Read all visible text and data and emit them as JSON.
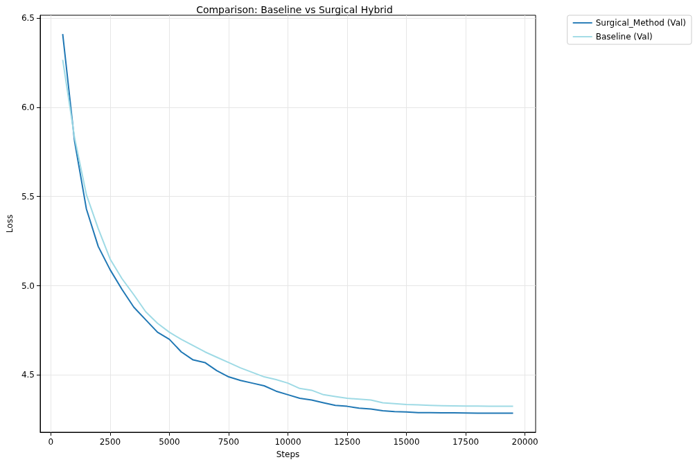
{
  "chart_data": {
    "type": "line",
    "title": "Comparison: Baseline vs Surgical Hybrid",
    "xlabel": "Steps",
    "ylabel": "Loss",
    "x": [
      500,
      1000,
      1500,
      2000,
      2500,
      3000,
      3500,
      4000,
      4500,
      5000,
      5500,
      6000,
      6500,
      7000,
      7500,
      8000,
      8500,
      9000,
      9500,
      10000,
      10500,
      11000,
      11500,
      12000,
      12500,
      13000,
      13500,
      14000,
      14500,
      15000,
      15500,
      16000,
      16500,
      17000,
      17500,
      18000,
      18500,
      19000,
      19500
    ],
    "series": [
      {
        "name": "Surgical_Method (Val)",
        "color": "#1f77b4",
        "values": [
          6.41,
          5.81,
          5.43,
          5.22,
          5.09,
          4.98,
          4.88,
          4.81,
          4.74,
          4.7,
          4.63,
          4.585,
          4.57,
          4.525,
          4.49,
          4.47,
          4.455,
          4.44,
          4.41,
          4.39,
          4.37,
          4.36,
          4.345,
          4.33,
          4.325,
          4.315,
          4.31,
          4.3,
          4.295,
          4.293,
          4.29,
          4.29,
          4.289,
          4.289,
          4.288,
          4.287,
          4.287,
          4.287,
          4.287
        ]
      },
      {
        "name": "Baseline (Val)",
        "color": "#9edae5",
        "values": [
          6.265,
          5.83,
          5.51,
          5.32,
          5.15,
          5.04,
          4.95,
          4.855,
          4.79,
          4.74,
          4.7,
          4.665,
          4.63,
          4.6,
          4.57,
          4.54,
          4.515,
          4.49,
          4.475,
          4.455,
          4.425,
          4.415,
          4.39,
          4.38,
          4.37,
          4.365,
          4.36,
          4.345,
          4.34,
          4.335,
          4.333,
          4.33,
          4.328,
          4.327,
          4.326,
          4.326,
          4.325,
          4.325,
          4.325
        ]
      }
    ],
    "xlim": [
      -450,
      20450
    ],
    "xticks": [
      0,
      2500,
      5000,
      7500,
      10000,
      12500,
      15000,
      17500,
      20000
    ],
    "ylim": [
      4.18,
      6.515
    ],
    "yticks": [
      4.5,
      {
        "value": 5,
        "label": "5.0"
      },
      5.5,
      {
        "value": 6,
        "label": "6.0"
      },
      6.5
    ],
    "grid": true,
    "legend": "top right",
    "marker": "none",
    "line_style": "solid"
  }
}
